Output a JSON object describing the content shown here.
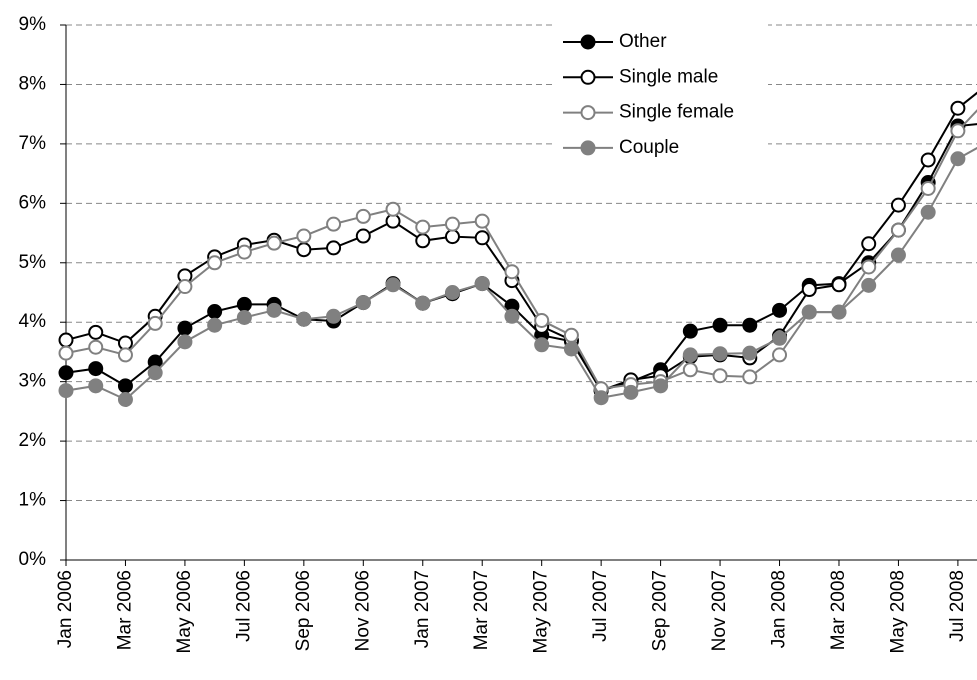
{
  "chart_data": {
    "type": "line",
    "categories": [
      "Jan 2006",
      null,
      "Mar 2006",
      null,
      "May 2006",
      null,
      "Jul 2006",
      null,
      "Sep 2006",
      null,
      "Nov 2006",
      null,
      "Jan 2007",
      null,
      "Mar 2007",
      null,
      "May 2007",
      null,
      "Jul 2007",
      null,
      "Sep 2007",
      null,
      "Nov 2007",
      null,
      "Jan 2008",
      null,
      "Mar 2008",
      null,
      "May 2008",
      null,
      "Jul 2008",
      null
    ],
    "series": [
      {
        "name": "Other",
        "color": "#000000",
        "marker": "filled",
        "values": [
          3.15,
          3.22,
          2.93,
          3.33,
          3.9,
          4.18,
          4.3,
          4.3,
          4.05,
          4.02,
          4.33,
          4.65,
          4.32,
          4.48,
          4.65,
          4.27,
          3.78,
          3.68,
          2.85,
          3.0,
          3.2,
          3.85,
          3.95,
          3.95,
          4.2,
          4.62,
          4.65,
          5.0,
          5.55,
          6.35,
          7.3,
          7.35
        ]
      },
      {
        "name": "Single male",
        "color": "#000000",
        "marker": "hollow",
        "values": [
          3.7,
          3.83,
          3.65,
          4.1,
          4.78,
          5.1,
          5.3,
          5.38,
          5.22,
          5.25,
          5.45,
          5.7,
          5.37,
          5.44,
          5.42,
          4.7,
          3.93,
          3.7,
          2.85,
          3.03,
          3.1,
          3.42,
          3.45,
          3.4,
          3.77,
          4.55,
          4.63,
          5.32,
          5.97,
          6.73,
          7.6,
          8.0
        ]
      },
      {
        "name": "Single female",
        "color": "#808080",
        "marker": "hollow",
        "values": [
          3.48,
          3.58,
          3.45,
          3.98,
          4.6,
          5.0,
          5.18,
          5.33,
          5.45,
          5.65,
          5.78,
          5.9,
          5.6,
          5.65,
          5.7,
          4.85,
          4.03,
          3.78,
          2.88,
          2.95,
          3.0,
          3.2,
          3.1,
          3.08,
          3.45,
          4.17,
          4.17,
          4.93,
          5.55,
          6.25,
          7.22,
          7.75
        ]
      },
      {
        "name": "Couple",
        "color": "#808080",
        "marker": "filled",
        "values": [
          2.85,
          2.93,
          2.7,
          3.15,
          3.67,
          3.95,
          4.08,
          4.2,
          4.05,
          4.1,
          4.33,
          4.63,
          4.32,
          4.5,
          4.65,
          4.1,
          3.62,
          3.55,
          2.73,
          2.82,
          2.93,
          3.45,
          3.47,
          3.48,
          3.73,
          4.17,
          4.17,
          4.62,
          5.13,
          5.85,
          6.75,
          7.03
        ]
      }
    ],
    "ylim": [
      0,
      9
    ],
    "yticks": [
      {
        "value": 0,
        "label": "0%"
      },
      {
        "value": 1,
        "label": "1%"
      },
      {
        "value": 2,
        "label": "2%"
      },
      {
        "value": 3,
        "label": "3%"
      },
      {
        "value": 4,
        "label": "4%"
      },
      {
        "value": 5,
        "label": "5%"
      },
      {
        "value": 6,
        "label": "6%"
      },
      {
        "value": 7,
        "label": "7%"
      },
      {
        "value": 8,
        "label": "8%"
      },
      {
        "value": 9,
        "label": "9%"
      }
    ],
    "grid": true,
    "legend": "top-right"
  }
}
